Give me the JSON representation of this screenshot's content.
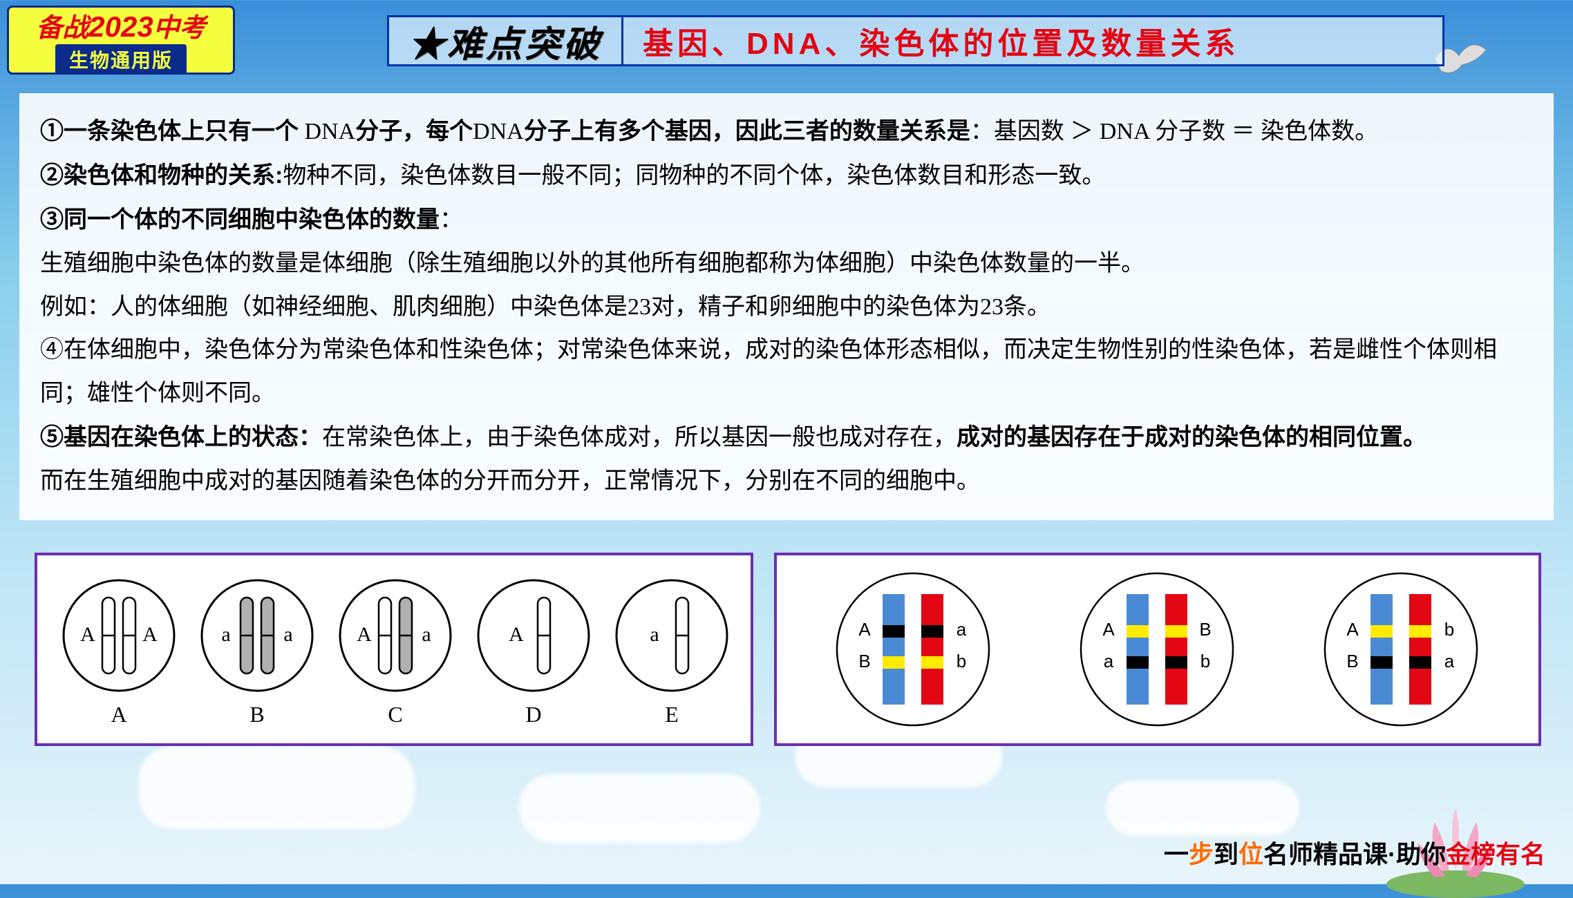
{
  "badge": {
    "prefix": "备战",
    "year": "2023",
    "suffix": "中考",
    "sub": "生物通用版"
  },
  "title": {
    "star": "★难点突破",
    "main": "基因、DNA、染色体的位置及数量关系"
  },
  "content": {
    "p1_b1": "①一条染色体上只有一个",
    "p1_t1": " DNA",
    "p1_b2": "分子，每个",
    "p1_t2": "DNA",
    "p1_b3": "分子上有多个基因，因此三者的数量关系是",
    "p1_t3": "：基因数 ＞ DNA 分子数 ＝ 染色体数。",
    "p2_b": "②染色体和物种的关系:",
    "p2_t": "物种不同，染色体数目一般不同；同物种的不同个体，染色体数目和形态一致。",
    "p3_b": "③同一个体的不同细胞中染色体的数量",
    "p3_t": "：",
    "p4": "生殖细胞中染色体的数量是体细胞（除生殖细胞以外的其他所有细胞都称为体细胞）中染色体数量的一半。",
    "p5": "例如：人的体细胞（如神经细胞、肌肉细胞）中染色体是23对，精子和卵细胞中的染色体为23条。",
    "p6": "④在体细胞中，染色体分为常染色体和性染色体；对常染色体来说，成对的染色体形态相似，而决定生物性别的性染色体，若是雌性个体则相同；雄性个体则不同。",
    "p7_b1": "⑤基因在染色体上的状态：",
    "p7_t1": "在常染色体上，由于染色体成对，所以基因一般也成对存在，",
    "p7_b2": "成对的基因存在于成对的染色体的相同位置。",
    "p8": "而在生殖细胞中成对的基因随着染色体的分开而分开，正常情况下，分别在不同的细胞中。"
  },
  "diagram1": {
    "type": "chromosome-circles",
    "cells": [
      {
        "label": "A",
        "left": {
          "fill": "#ffffff",
          "gene": "A"
        },
        "right": {
          "fill": "#ffffff",
          "gene": "A"
        }
      },
      {
        "label": "B",
        "left": {
          "fill": "#b0b0b0",
          "gene": "a"
        },
        "right": {
          "fill": "#b0b0b0",
          "gene": "a"
        }
      },
      {
        "label": "C",
        "left": {
          "fill": "#ffffff",
          "gene": "A"
        },
        "right": {
          "fill": "#b0b0b0",
          "gene": "a"
        }
      },
      {
        "label": "D",
        "single": {
          "fill": "#ffffff",
          "gene": "A"
        }
      },
      {
        "label": "E",
        "single": {
          "fill": "#ffffff",
          "gene": "a"
        }
      }
    ],
    "circle_stroke": "#000000",
    "label_fontsize": 32
  },
  "diagram2": {
    "type": "paired-chromosome-bands",
    "cells": [
      {
        "left": {
          "body": "#4a8ad4",
          "bands": [
            "#000000",
            "#ffeb00"
          ]
        },
        "right": {
          "body": "#e30613",
          "bands": [
            "#000000",
            "#ffeb00"
          ]
        },
        "leftLabels": [
          "A",
          "B"
        ],
        "rightLabels": [
          "a",
          "b"
        ]
      },
      {
        "left": {
          "body": "#4a8ad4",
          "bands": [
            "#ffeb00",
            "#000000"
          ]
        },
        "right": {
          "body": "#e30613",
          "bands": [
            "#ffeb00",
            "#000000"
          ]
        },
        "leftLabels": [
          "A",
          "a"
        ],
        "rightLabels": [
          "B",
          "b"
        ]
      },
      {
        "left": {
          "body": "#4a8ad4",
          "bands": [
            "#ffeb00",
            "#000000"
          ]
        },
        "right": {
          "body": "#e30613",
          "bands": [
            "#ffeb00",
            "#000000"
          ]
        },
        "leftLabels": [
          "A",
          "B"
        ],
        "rightLabels": [
          "b",
          "a"
        ]
      }
    ],
    "circle_stroke": "#000000",
    "label_fontsize": 26
  },
  "footer": {
    "t1": "一",
    "t2": "步",
    "t3": "到",
    "t4": "位",
    "t5": "名师精品课·助你",
    "t6": "金榜有名"
  }
}
